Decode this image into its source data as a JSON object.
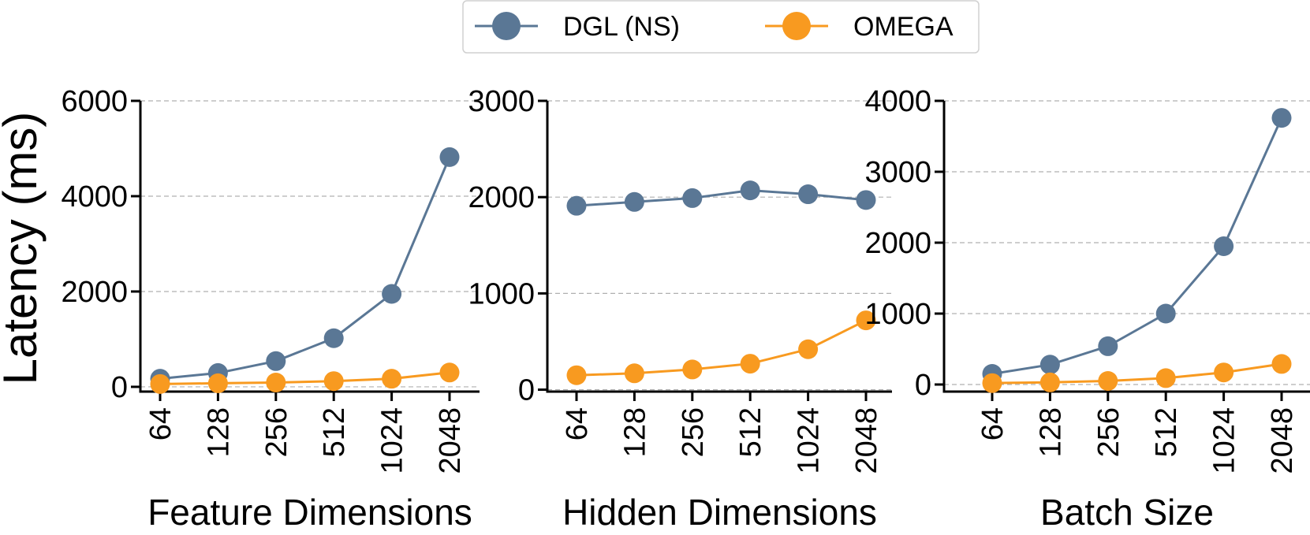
{
  "ylabel": "Latency (ms)",
  "colors": {
    "dgl": "#5a7795",
    "omega": "#f89a20",
    "grid": "#b0b0b0"
  },
  "legend": {
    "placement": "top-center",
    "entries": [
      {
        "label": "DGL (NS)",
        "color": "#5a7795"
      },
      {
        "label": "OMEGA",
        "color": "#f89a20"
      }
    ]
  },
  "chart_data": [
    {
      "type": "line",
      "xlabel": "Feature Dimensions",
      "ylabel": "Latency (ms)",
      "categories": [
        "64",
        "128",
        "256",
        "512",
        "1024",
        "2048"
      ],
      "ylim": [
        -100,
        6000
      ],
      "yticks": [
        0,
        2000,
        4000,
        6000
      ],
      "grid": true,
      "series": [
        {
          "name": "DGL (NS)",
          "values": [
            170,
            290,
            540,
            1020,
            1950,
            4820
          ]
        },
        {
          "name": "OMEGA",
          "values": [
            60,
            75,
            90,
            120,
            170,
            300
          ]
        }
      ]
    },
    {
      "type": "line",
      "xlabel": "Hidden Dimensions",
      "ylabel": "",
      "categories": [
        "64",
        "128",
        "256",
        "512",
        "1024",
        "2048"
      ],
      "ylim": [
        -20,
        3000
      ],
      "yticks": [
        0,
        1000,
        2000,
        3000
      ],
      "grid": true,
      "series": [
        {
          "name": "DGL (NS)",
          "values": [
            1910,
            1950,
            1990,
            2070,
            2030,
            1970
          ]
        },
        {
          "name": "OMEGA",
          "values": [
            150,
            170,
            210,
            270,
            420,
            720
          ]
        }
      ]
    },
    {
      "type": "line",
      "xlabel": "Batch Size",
      "ylabel": "",
      "categories": [
        "64",
        "128",
        "256",
        "512",
        "1024",
        "2048"
      ],
      "ylim": [
        -100,
        4000
      ],
      "yticks": [
        0,
        1000,
        2000,
        3000,
        4000
      ],
      "grid": true,
      "series": [
        {
          "name": "DGL (NS)",
          "values": [
            150,
            280,
            540,
            1000,
            1950,
            3760
          ]
        },
        {
          "name": "OMEGA",
          "values": [
            20,
            30,
            50,
            90,
            170,
            290
          ]
        }
      ]
    }
  ]
}
